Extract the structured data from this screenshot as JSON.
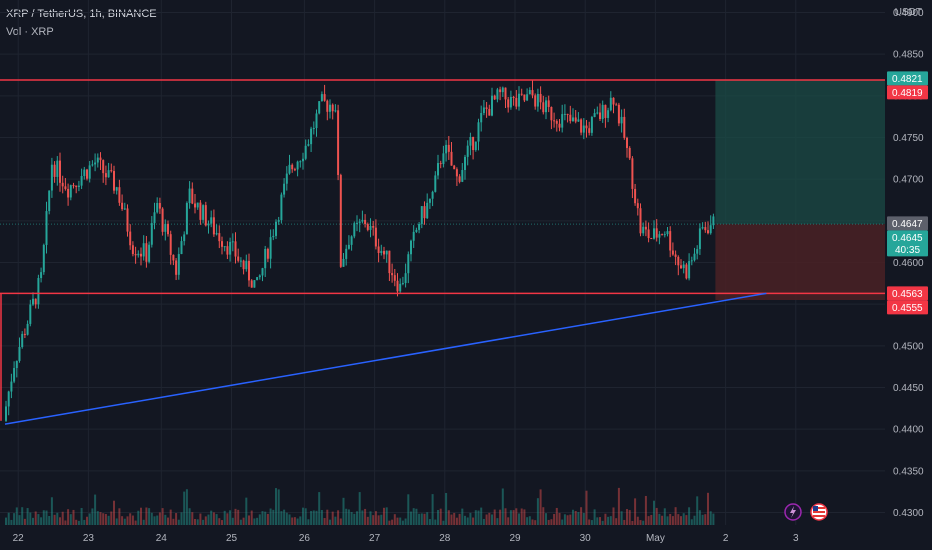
{
  "header": {
    "title": "XRP / TetherUS, 1h, BINANCE",
    "volume_label": "Vol · XRP"
  },
  "axis": {
    "unit": "USDT"
  },
  "colors": {
    "background": "#131722",
    "grid": "#1f2430",
    "up": "#26a69a",
    "down": "#ef5350",
    "trendline": "#2962ff",
    "level": "#f23645",
    "target_zone": "#1b4b45",
    "stop_zone": "#4a2125",
    "price_tag": "#26a69a"
  },
  "icons": [
    "lightning-icon",
    "us-flag-icon"
  ],
  "chart_data": {
    "type": "candlestick",
    "ylim": [
      0.4285,
      0.4915
    ],
    "y_ticks": [
      "0.4900",
      "0.4850",
      "0.4800",
      "0.4750",
      "0.4700",
      "0.4650",
      "0.4600",
      "0.4550",
      "0.4500",
      "0.4450",
      "0.4400",
      "0.4350",
      "0.4300"
    ],
    "x_ticks": [
      "22",
      "23",
      "24",
      "25",
      "26",
      "27",
      "28",
      "29",
      "30",
      "May",
      "2",
      "3"
    ],
    "grid": true,
    "series_shape": [
      [
        0,
        0.441
      ],
      [
        4,
        0.448
      ],
      [
        9,
        0.453
      ],
      [
        14,
        0.458
      ],
      [
        18,
        0.472
      ],
      [
        24,
        0.469
      ],
      [
        34,
        0.472
      ],
      [
        42,
        0.469
      ],
      [
        48,
        0.462
      ],
      [
        53,
        0.461
      ],
      [
        57,
        0.467
      ],
      [
        64,
        0.459
      ],
      [
        69,
        0.468
      ],
      [
        78,
        0.464
      ],
      [
        86,
        0.461
      ],
      [
        94,
        0.457
      ],
      [
        100,
        0.464
      ],
      [
        106,
        0.471
      ],
      [
        112,
        0.474
      ],
      [
        118,
        0.479
      ],
      [
        123,
        0.479
      ],
      [
        125,
        0.46
      ],
      [
        128,
        0.463
      ],
      [
        134,
        0.465
      ],
      [
        141,
        0.461
      ],
      [
        147,
        0.457
      ],
      [
        154,
        0.465
      ],
      [
        159,
        0.468
      ],
      [
        163,
        0.474
      ],
      [
        168,
        0.47
      ],
      [
        172,
        0.473
      ],
      [
        178,
        0.478
      ],
      [
        184,
        0.48
      ],
      [
        190,
        0.479
      ],
      [
        196,
        0.48
      ],
      [
        202,
        0.478
      ],
      [
        209,
        0.477
      ],
      [
        216,
        0.476
      ],
      [
        222,
        0.478
      ],
      [
        226,
        0.48
      ],
      [
        230,
        0.475
      ],
      [
        233,
        0.47
      ],
      [
        236,
        0.464
      ],
      [
        240,
        0.463
      ],
      [
        245,
        0.464
      ],
      [
        250,
        0.46
      ],
      [
        253,
        0.459
      ],
      [
        256,
        0.461
      ],
      [
        259,
        0.464
      ],
      [
        262,
        0.4646
      ]
    ],
    "levels": [
      {
        "value": 0.4819,
        "label": "0.4819",
        "color": "#f23645"
      },
      {
        "value": 0.4563,
        "label": "0.4563",
        "color": "#f23645"
      }
    ],
    "trendline": {
      "from": [
        0,
        0.4406
      ],
      "to": [
        282,
        0.4563
      ]
    },
    "price_tags": [
      {
        "value": 0.4821,
        "label": "0.4821",
        "color": "#26a69a"
      },
      {
        "value": 0.4819,
        "label": "0.4819",
        "color": "#f23645"
      },
      {
        "value": 0.4647,
        "label": "0.4647",
        "color": "#5d606b"
      },
      {
        "value": 0.4645,
        "label": "0.4645",
        "sub": "40:35",
        "color": "#26a69a"
      },
      {
        "value": 0.4563,
        "label": "0.4563",
        "color": "#f23645"
      },
      {
        "value": 0.4555,
        "label": "0.4555",
        "color": "#f23645"
      }
    ],
    "position": {
      "target": 0.4819,
      "entry": 0.4646,
      "stop": 0.4555
    }
  }
}
